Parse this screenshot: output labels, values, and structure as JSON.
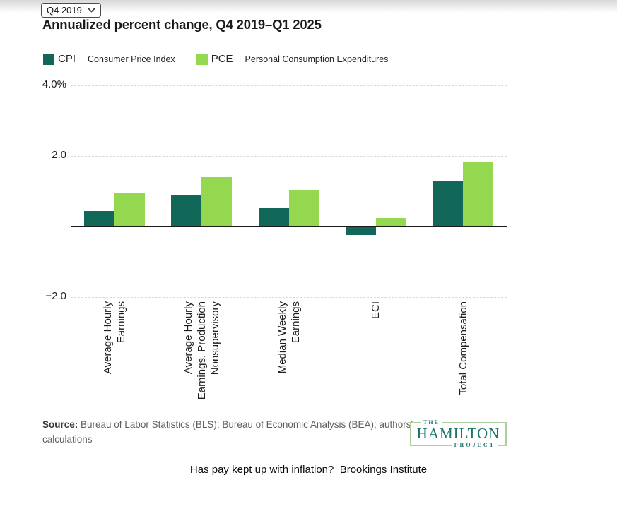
{
  "page": {
    "period_selector": {
      "value": "Q4 2019"
    },
    "title": "Annualized percent change, Q4 2019–Q1 2025",
    "legend": [
      {
        "key": "CPI",
        "description": "Consumer Price Index"
      },
      {
        "key": "PCE",
        "description": "Personal Consumption Expenditures"
      }
    ],
    "source": {
      "label": "Source:",
      "text": " Bureau of Labor Statistics (BLS); Bureau of Economic Analysis (BEA); authors' calculations"
    },
    "logo": {
      "the": "THE",
      "name": "HAMILTON",
      "project": "PROJECT"
    },
    "caption": "Has pay kept up with inflation?  Brookings Institute"
  },
  "chart_data": {
    "type": "bar",
    "title": "Annualized percent change, Q4 2019–Q1 2025",
    "categories": [
      "Average Hourly Earnings",
      "Average Hourly Earnings, Production Nonsupervisory",
      "Median Weekly Earnings",
      "ECI",
      "Total Compensation"
    ],
    "category_label_lines": [
      [
        "Average Hourly",
        "Earnings"
      ],
      [
        "Average Hourly",
        "Earnings, Production",
        "Nonsupervisory"
      ],
      [
        "Median Weekly",
        "Earnings"
      ],
      [
        "ECI"
      ],
      [
        "Total Compensation"
      ]
    ],
    "series": [
      {
        "name": "CPI",
        "color": "#116758",
        "values": [
          0.45,
          0.9,
          0.55,
          -0.25,
          1.3
        ]
      },
      {
        "name": "PCE",
        "color": "#93d84f",
        "values": [
          0.95,
          1.4,
          1.05,
          0.25,
          1.85
        ]
      }
    ],
    "ylabel": "Annualized percent change",
    "yticks": [
      {
        "value": 4,
        "label": "4.0%"
      },
      {
        "value": 2,
        "label": "2.0"
      },
      {
        "value": -2,
        "label": "−2.0"
      }
    ],
    "ylim": [
      -2.6,
      4.3
    ],
    "grid": "horizontal-dotted",
    "legend_position": "top-left"
  }
}
